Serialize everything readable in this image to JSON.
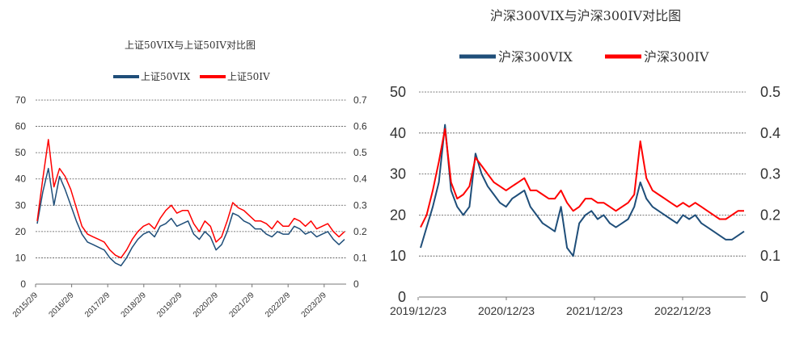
{
  "chart_data": [
    {
      "type": "line",
      "title": "上证50VIX与上证50IV对比图",
      "series": [
        {
          "name": "上证50VIX",
          "color": "#1f4e79",
          "axis": "left",
          "values": [
            23,
            35,
            44,
            30,
            41,
            36,
            30,
            24,
            19,
            16,
            15,
            14,
            13,
            10,
            8,
            7,
            10,
            14,
            17,
            19,
            20,
            18,
            22,
            23,
            25,
            22,
            23,
            24,
            19,
            17,
            20,
            18,
            13,
            15,
            20,
            27,
            26,
            24,
            23,
            21,
            21,
            19,
            18,
            20,
            19,
            19,
            22,
            21,
            19,
            20,
            18,
            19,
            20,
            17,
            15,
            17
          ]
        },
        {
          "name": "上证50IV",
          "color": "#ff0000",
          "axis": "right",
          "values": [
            0.24,
            0.4,
            0.55,
            0.37,
            0.44,
            0.41,
            0.36,
            0.29,
            0.22,
            0.19,
            0.18,
            0.17,
            0.16,
            0.13,
            0.11,
            0.1,
            0.13,
            0.17,
            0.2,
            0.22,
            0.23,
            0.21,
            0.25,
            0.28,
            0.3,
            0.27,
            0.28,
            0.28,
            0.23,
            0.2,
            0.24,
            0.22,
            0.16,
            0.18,
            0.24,
            0.31,
            0.29,
            0.28,
            0.26,
            0.24,
            0.24,
            0.23,
            0.21,
            0.24,
            0.22,
            0.22,
            0.25,
            0.24,
            0.22,
            0.24,
            0.21,
            0.22,
            0.23,
            0.2,
            0.18,
            0.2
          ]
        }
      ],
      "y_left": {
        "ylim": [
          0,
          70
        ],
        "ticks": [
          "0",
          "10",
          "20",
          "30",
          "40",
          "50",
          "60",
          "70"
        ]
      },
      "y_right": {
        "ylim": [
          0,
          0.7
        ],
        "ticks": [
          "0",
          "0.1",
          "0.2",
          "0.3",
          "0.4",
          "0.5",
          "0.6",
          "0.7"
        ]
      },
      "x_ticks": [
        "2015/2/9",
        "2016/2/9",
        "2017/2/9",
        "2018/2/9",
        "2019/2/9",
        "2020/2/9",
        "2021/2/9",
        "2022/2/9",
        "2023/2/9"
      ],
      "legend": "top"
    },
    {
      "type": "line",
      "title": "沪深300VIX与沪深300IV对比图",
      "series": [
        {
          "name": "沪深300VIX",
          "color": "#1f4e79",
          "axis": "left",
          "values": [
            12,
            17,
            22,
            28,
            42,
            26,
            22,
            20,
            22,
            35,
            30,
            27,
            25,
            23,
            22,
            24,
            25,
            26,
            22,
            20,
            18,
            17,
            16,
            22,
            12,
            10,
            18,
            20,
            21,
            19,
            20,
            18,
            17,
            18,
            19,
            22,
            28,
            24,
            22,
            21,
            20,
            19,
            18,
            20,
            19,
            20,
            18,
            17,
            16,
            15,
            14,
            14,
            15,
            16
          ]
        },
        {
          "name": "沪深300IV",
          "color": "#ff0000",
          "axis": "right",
          "values": [
            0.17,
            0.2,
            0.26,
            0.33,
            0.41,
            0.28,
            0.24,
            0.25,
            0.27,
            0.34,
            0.32,
            0.3,
            0.28,
            0.27,
            0.26,
            0.27,
            0.28,
            0.29,
            0.26,
            0.26,
            0.25,
            0.24,
            0.24,
            0.26,
            0.23,
            0.21,
            0.22,
            0.24,
            0.24,
            0.23,
            0.23,
            0.22,
            0.21,
            0.22,
            0.23,
            0.25,
            0.38,
            0.29,
            0.26,
            0.25,
            0.24,
            0.23,
            0.22,
            0.23,
            0.22,
            0.23,
            0.22,
            0.21,
            0.2,
            0.19,
            0.19,
            0.2,
            0.21,
            0.21
          ]
        }
      ],
      "y_left": {
        "ylim": [
          0,
          50
        ],
        "ticks": [
          "0",
          "10",
          "20",
          "30",
          "40",
          "50"
        ]
      },
      "y_right": {
        "ylim": [
          0,
          0.5
        ],
        "ticks": [
          "0",
          "0.1",
          "0.2",
          "0.3",
          "0.4",
          "0.5"
        ]
      },
      "x_ticks": [
        "2019/12/23",
        "2020/12/23",
        "2021/12/23",
        "2022/12/23"
      ],
      "legend": "top"
    }
  ]
}
